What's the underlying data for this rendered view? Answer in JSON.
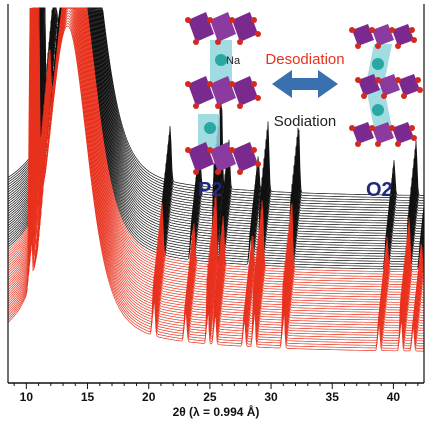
{
  "chart_data": {
    "type": "line",
    "title": "",
    "xlabel": "2θ (λ = 0.994 Å)",
    "ylabel": "",
    "xlim": [
      8.5,
      42.5
    ],
    "xticks": [
      10,
      15,
      20,
      25,
      30,
      35,
      40
    ],
    "series": [
      {
        "name": "Desodiation",
        "color": "#e8321e",
        "peaks_2theta": [
          10.3,
          11.2,
          13.4,
          20.4,
          23.0,
          24.8,
          25.4,
          27.8,
          28.6,
          31.0,
          38.8,
          40.6,
          41.6
        ]
      },
      {
        "name": "Sodiation",
        "color": "#111111",
        "peaks_2theta": [
          10.1,
          11.0,
          13.4,
          20.4,
          22.8,
          24.6,
          25.2,
          27.6,
          28.4,
          30.9,
          38.7,
          40.5,
          41.5
        ]
      }
    ],
    "structures": {
      "left_label": "P2",
      "right_label": "O2",
      "atom_label": "Na"
    },
    "arrow_labels": {
      "top": "Desodiation",
      "bottom": "Sodiation"
    },
    "colors": {
      "desodiation": "#e8321e",
      "sodiation": "#111111",
      "octahedra": "#7a2a8e",
      "prism": "#8fd6dc",
      "na_atom": "#2aa7a0",
      "oxygen": "#d42a1e",
      "arrow": "#3a6fb0",
      "structure_label": "#1d2a7a"
    }
  }
}
